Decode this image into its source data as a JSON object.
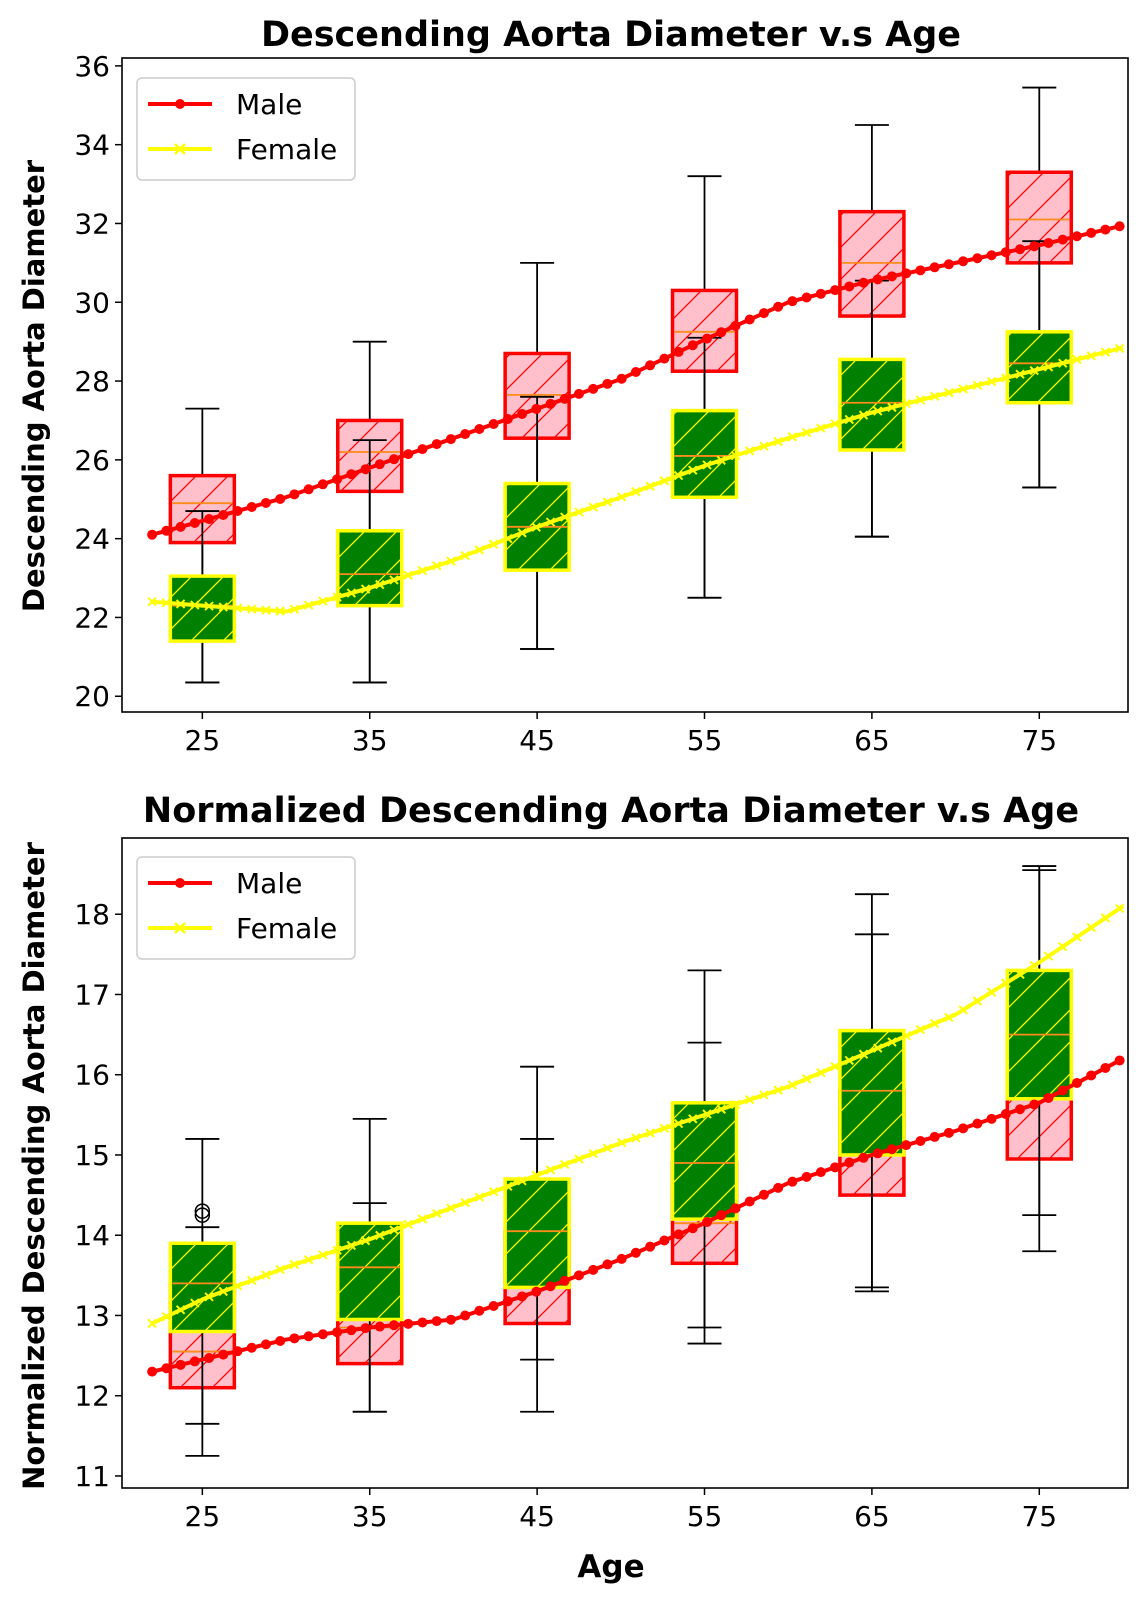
{
  "chart_data": [
    {
      "type": "box",
      "title": "Descending Aorta Diameter v.s Age",
      "xlabel": "",
      "ylabel": "Descending Aorta Diameter",
      "xlim": [
        20.2,
        80.3
      ],
      "ylim": [
        19.6,
        36.2
      ],
      "xticks": [
        25,
        35,
        45,
        55,
        65,
        75
      ],
      "yticks": [
        20,
        22,
        24,
        26,
        28,
        30,
        32,
        34,
        36
      ],
      "legend_position": "upper-left",
      "legend": [
        {
          "label": "Male",
          "color": "#ff0000",
          "marker": "circle"
        },
        {
          "label": "Female",
          "color": "#ffff00",
          "marker": "x"
        }
      ],
      "boxes": [
        {
          "series": "Male",
          "age": 25,
          "whislo": 20.35,
          "q1": 23.9,
          "med": 24.9,
          "q3": 25.6,
          "whishi": 27.3,
          "fill": "#ffc0cb",
          "edge": "#ff0000"
        },
        {
          "series": "Male",
          "age": 35,
          "whislo": 20.35,
          "q1": 25.2,
          "med": 26.2,
          "q3": 27.0,
          "whishi": 29.0,
          "fill": "#ffc0cb",
          "edge": "#ff0000"
        },
        {
          "series": "Male",
          "age": 45,
          "whislo": 21.2,
          "q1": 26.55,
          "med": 27.65,
          "q3": 28.7,
          "whishi": 31.0,
          "fill": "#ffc0cb",
          "edge": "#ff0000"
        },
        {
          "series": "Male",
          "age": 55,
          "whislo": 22.5,
          "q1": 28.25,
          "med": 29.25,
          "q3": 30.3,
          "whishi": 33.2,
          "fill": "#ffc0cb",
          "edge": "#ff0000"
        },
        {
          "series": "Male",
          "age": 65,
          "whislo": 24.05,
          "q1": 29.65,
          "med": 31.0,
          "q3": 32.3,
          "whishi": 34.5,
          "fill": "#ffc0cb",
          "edge": "#ff0000"
        },
        {
          "series": "Male",
          "age": 75,
          "whislo": 25.3,
          "q1": 31.0,
          "med": 32.1,
          "q3": 33.3,
          "whishi": 35.45,
          "fill": "#ffc0cb",
          "edge": "#ff0000"
        },
        {
          "series": "Female",
          "age": 25,
          "whislo": 20.35,
          "q1": 21.4,
          "med": 22.3,
          "q3": 23.05,
          "whishi": 24.7,
          "fill": "#008000",
          "edge": "#ffff00"
        },
        {
          "series": "Female",
          "age": 35,
          "whislo": 20.35,
          "q1": 22.3,
          "med": 23.1,
          "q3": 24.2,
          "whishi": 26.5,
          "fill": "#008000",
          "edge": "#ffff00"
        },
        {
          "series": "Female",
          "age": 45,
          "whislo": 21.2,
          "q1": 23.2,
          "med": 24.3,
          "q3": 25.4,
          "whishi": 27.6,
          "fill": "#008000",
          "edge": "#ffff00"
        },
        {
          "series": "Female",
          "age": 55,
          "whislo": 22.5,
          "q1": 25.05,
          "med": 26.1,
          "q3": 27.25,
          "whishi": 29.1,
          "fill": "#008000",
          "edge": "#ffff00"
        },
        {
          "series": "Female",
          "age": 65,
          "whislo": 24.05,
          "q1": 26.25,
          "med": 27.45,
          "q3": 28.55,
          "whishi": 30.55,
          "fill": "#008000",
          "edge": "#ffff00"
        },
        {
          "series": "Female",
          "age": 75,
          "whislo": 25.3,
          "q1": 27.45,
          "med": 28.45,
          "q3": 29.25,
          "whishi": 31.55,
          "fill": "#008000",
          "edge": "#ffff00"
        }
      ],
      "lines": [
        {
          "name": "Male",
          "color": "#ff0000",
          "marker": "circle",
          "points": [
            [
              22,
              24.1
            ],
            [
              25,
              24.45
            ],
            [
              30,
              25.05
            ],
            [
              35,
              25.8
            ],
            [
              40,
              26.55
            ],
            [
              45,
              27.3
            ],
            [
              50,
              28.05
            ],
            [
              55,
              29.05
            ],
            [
              60,
              30.0
            ],
            [
              65,
              30.55
            ],
            [
              70,
              31.0
            ],
            [
              75,
              31.45
            ],
            [
              80,
              31.95
            ]
          ]
        },
        {
          "name": "Female",
          "color": "#ffff00",
          "marker": "x",
          "points": [
            [
              22,
              22.4
            ],
            [
              25,
              22.3
            ],
            [
              30,
              22.15
            ],
            [
              35,
              22.75
            ],
            [
              40,
              23.45
            ],
            [
              45,
              24.3
            ],
            [
              50,
              25.05
            ],
            [
              55,
              25.85
            ],
            [
              60,
              26.55
            ],
            [
              65,
              27.2
            ],
            [
              70,
              27.75
            ],
            [
              75,
              28.3
            ],
            [
              80,
              28.85
            ]
          ]
        }
      ]
    },
    {
      "type": "box",
      "title": "Normalized Descending Aorta Diameter v.s Age",
      "xlabel": "Age",
      "ylabel": "Normalized Descending Aorta Diameter",
      "xlim": [
        20.2,
        80.3
      ],
      "ylim": [
        10.85,
        18.95
      ],
      "xticks": [
        25,
        35,
        45,
        55,
        65,
        75
      ],
      "yticks": [
        11,
        12,
        13,
        14,
        15,
        16,
        17,
        18
      ],
      "legend_position": "upper-left",
      "legend": [
        {
          "label": "Male",
          "color": "#ff0000",
          "marker": "circle"
        },
        {
          "label": "Female",
          "color": "#ffff00",
          "marker": "x"
        }
      ],
      "boxes": [
        {
          "series": "Male",
          "age": 25,
          "whislo": 11.25,
          "q1": 12.1,
          "med": 12.55,
          "q3": 13.4,
          "whishi": 14.1,
          "fill": "#ffc0cb",
          "edge": "#ff0000"
        },
        {
          "series": "Male",
          "age": 35,
          "whislo": 11.8,
          "q1": 12.4,
          "med": 12.85,
          "q3": 13.6,
          "whishi": 14.4,
          "fill": "#ffc0cb",
          "edge": "#ff0000"
        },
        {
          "series": "Male",
          "age": 45,
          "whislo": 11.8,
          "q1": 12.9,
          "med": 13.5,
          "q3": 14.05,
          "whishi": 15.2,
          "fill": "#ffc0cb",
          "edge": "#ff0000"
        },
        {
          "series": "Male",
          "age": 55,
          "whislo": 12.65,
          "q1": 13.65,
          "med": 14.15,
          "q3": 14.9,
          "whishi": 16.4,
          "fill": "#ffc0cb",
          "edge": "#ff0000"
        },
        {
          "series": "Male",
          "age": 65,
          "whislo": 13.35,
          "q1": 14.5,
          "med": 15.15,
          "q3": 15.8,
          "whishi": 17.75,
          "fill": "#ffc0cb",
          "edge": "#ff0000"
        },
        {
          "series": "Male",
          "age": 75,
          "whislo": 13.8,
          "q1": 14.95,
          "med": 16.05,
          "q3": 16.5,
          "whishi": 18.6,
          "fill": "#ffc0cb",
          "edge": "#ff0000"
        },
        {
          "series": "Female",
          "age": 25,
          "whislo": 11.65,
          "q1": 12.8,
          "med": 13.4,
          "q3": 13.9,
          "whishi": 15.2,
          "fill": "#008000",
          "edge": "#ffff00"
        },
        {
          "series": "Female",
          "age": 35,
          "whislo": 11.8,
          "q1": 12.95,
          "med": 13.6,
          "q3": 14.15,
          "whishi": 15.45,
          "fill": "#008000",
          "edge": "#ffff00"
        },
        {
          "series": "Female",
          "age": 45,
          "whislo": 12.45,
          "q1": 13.35,
          "med": 14.05,
          "q3": 14.7,
          "whishi": 16.1,
          "fill": "#008000",
          "edge": "#ffff00"
        },
        {
          "series": "Female",
          "age": 55,
          "whislo": 12.85,
          "q1": 14.2,
          "med": 14.9,
          "q3": 15.65,
          "whishi": 17.3,
          "fill": "#008000",
          "edge": "#ffff00"
        },
        {
          "series": "Female",
          "age": 65,
          "whislo": 13.3,
          "q1": 15.0,
          "med": 15.8,
          "q3": 16.55,
          "whishi": 18.25,
          "fill": "#008000",
          "edge": "#ffff00"
        },
        {
          "series": "Female",
          "age": 75,
          "whislo": 14.25,
          "q1": 15.7,
          "med": 16.5,
          "q3": 17.3,
          "whishi": 18.55,
          "fill": "#008000",
          "edge": "#ffff00"
        }
      ],
      "outliers": [
        {
          "age": 25,
          "value": 14.25
        },
        {
          "age": 25,
          "value": 14.3
        }
      ],
      "lines": [
        {
          "name": "Male",
          "color": "#ff0000",
          "marker": "circle",
          "points": [
            [
              22,
              12.3
            ],
            [
              25,
              12.45
            ],
            [
              30,
              12.7
            ],
            [
              35,
              12.85
            ],
            [
              40,
              12.95
            ],
            [
              45,
              13.3
            ],
            [
              50,
              13.7
            ],
            [
              55,
              14.15
            ],
            [
              60,
              14.65
            ],
            [
              65,
              15.0
            ],
            [
              70,
              15.3
            ],
            [
              75,
              15.65
            ],
            [
              80,
              16.2
            ]
          ]
        },
        {
          "name": "Female",
          "color": "#ffff00",
          "marker": "x",
          "points": [
            [
              22,
              12.9
            ],
            [
              25,
              13.2
            ],
            [
              30,
              13.6
            ],
            [
              35,
              13.95
            ],
            [
              40,
              14.35
            ],
            [
              45,
              14.75
            ],
            [
              50,
              15.15
            ],
            [
              55,
              15.5
            ],
            [
              60,
              15.85
            ],
            [
              65,
              16.3
            ],
            [
              70,
              16.75
            ],
            [
              75,
              17.4
            ],
            [
              80,
              18.1
            ]
          ]
        }
      ]
    }
  ]
}
